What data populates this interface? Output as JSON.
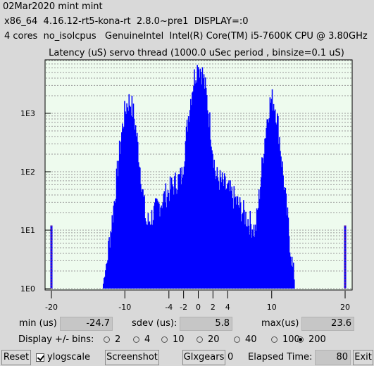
{
  "header": {
    "title_line": "02Mar2020 mint mint",
    "system_line": "x86_64  4.16.12-rt5-kona-rt  2.8.0~pre1  DISPLAY=:0",
    "cpu_line": "4 cores  no_isolcpus   GenuineIntel  Intel(R) Core(TM) i5-7600K CPU @ 3.80GHz"
  },
  "chart_data": {
    "type": "bar",
    "title": "Latency (uS) servo thread (1000.0 uSec period , binsize=0.1 uS)",
    "xlabel": "",
    "ylabel": "",
    "x_ticks": [
      -20,
      -10,
      -4,
      -2,
      0,
      2,
      4,
      10,
      20
    ],
    "y_ticks": [
      "1E0",
      "1E1",
      "1E2",
      "1E3"
    ],
    "y_scale": "log",
    "xlim": [
      -20,
      20
    ],
    "ylim": [
      1,
      8000
    ],
    "grid": true,
    "bar_color": "#0000ff",
    "background": "#eefbee",
    "min_marker": -20,
    "max_marker": 20,
    "marker_color": "#d03030",
    "peaks": [
      {
        "x": -9.5,
        "count": 1600
      },
      {
        "x": 0,
        "count": 6200
      },
      {
        "x": 10,
        "count": 1700
      }
    ]
  },
  "stats": {
    "min_label": "min (us)",
    "min_value": "-24.7",
    "sdev_label": "sdev (us):",
    "sdev_value": "5.8",
    "max_label": "max(us)",
    "max_value": "23.6"
  },
  "bins": {
    "label": "Display +/- bins:",
    "options": [
      "2",
      "4",
      "10",
      "20",
      "40",
      "100",
      "200"
    ],
    "selected": "200"
  },
  "buttons": {
    "reset": "Reset",
    "ylogscale": "ylogscale",
    "ylogscale_checked": true,
    "screenshot": "Screenshot",
    "glxgears": "Glxgears",
    "glxgears_count": "0",
    "elapsed_label": "Elapsed Time:",
    "elapsed_value": "80",
    "exit": "Exit"
  }
}
